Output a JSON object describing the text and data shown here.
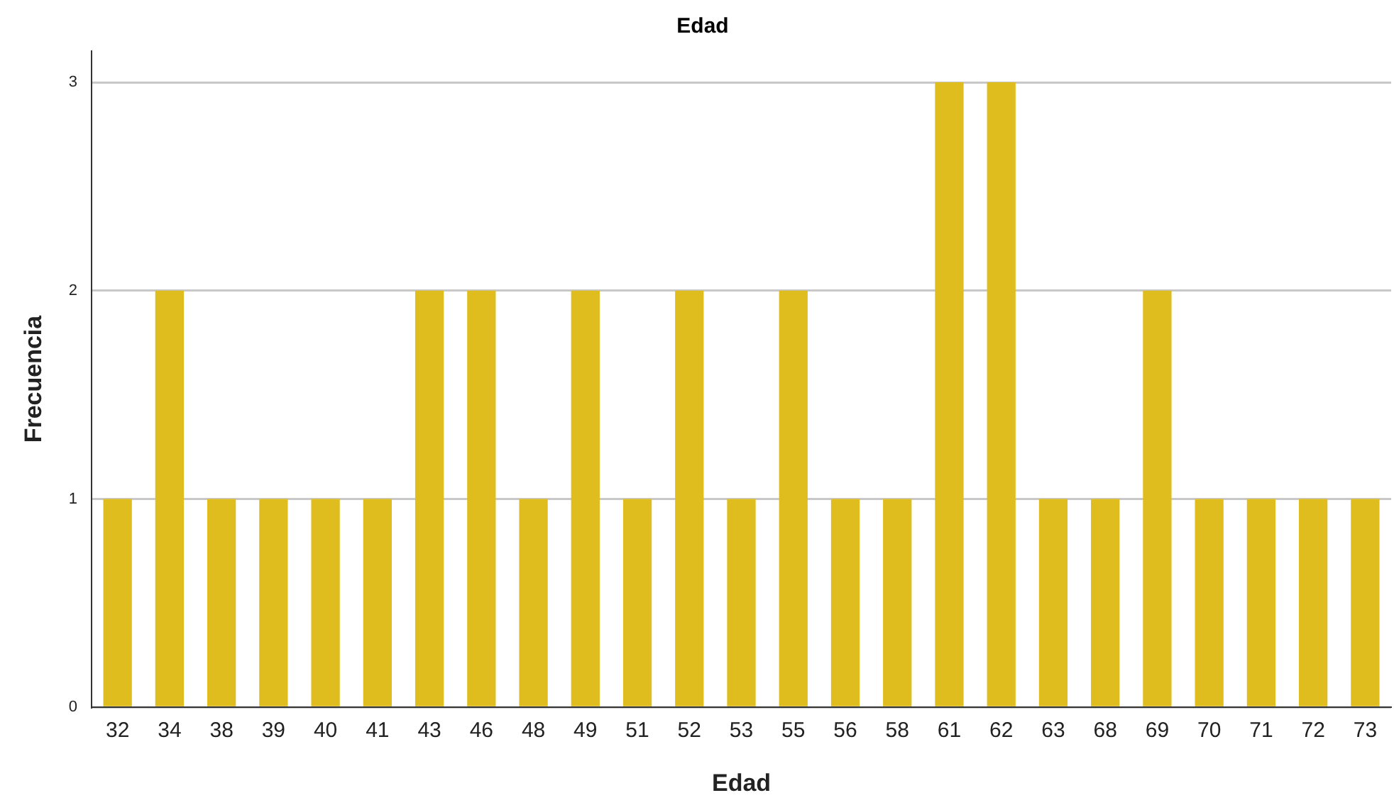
{
  "chart_data": {
    "type": "bar",
    "title": "Edad",
    "xlabel": "Edad",
    "ylabel": "Frecuencia",
    "categories": [
      "32",
      "34",
      "38",
      "39",
      "40",
      "41",
      "43",
      "46",
      "48",
      "49",
      "51",
      "52",
      "53",
      "55",
      "56",
      "58",
      "61",
      "62",
      "63",
      "68",
      "69",
      "70",
      "71",
      "72",
      "73"
    ],
    "values": [
      1,
      2,
      1,
      1,
      1,
      1,
      2,
      2,
      1,
      2,
      1,
      2,
      1,
      2,
      1,
      1,
      3,
      3,
      1,
      1,
      2,
      1,
      1,
      1,
      1
    ],
    "color": "#e0bd1e",
    "ylim": [
      0,
      3.15
    ],
    "yticks": [
      0,
      1,
      2,
      3
    ],
    "grid": "y",
    "legend": false
  }
}
